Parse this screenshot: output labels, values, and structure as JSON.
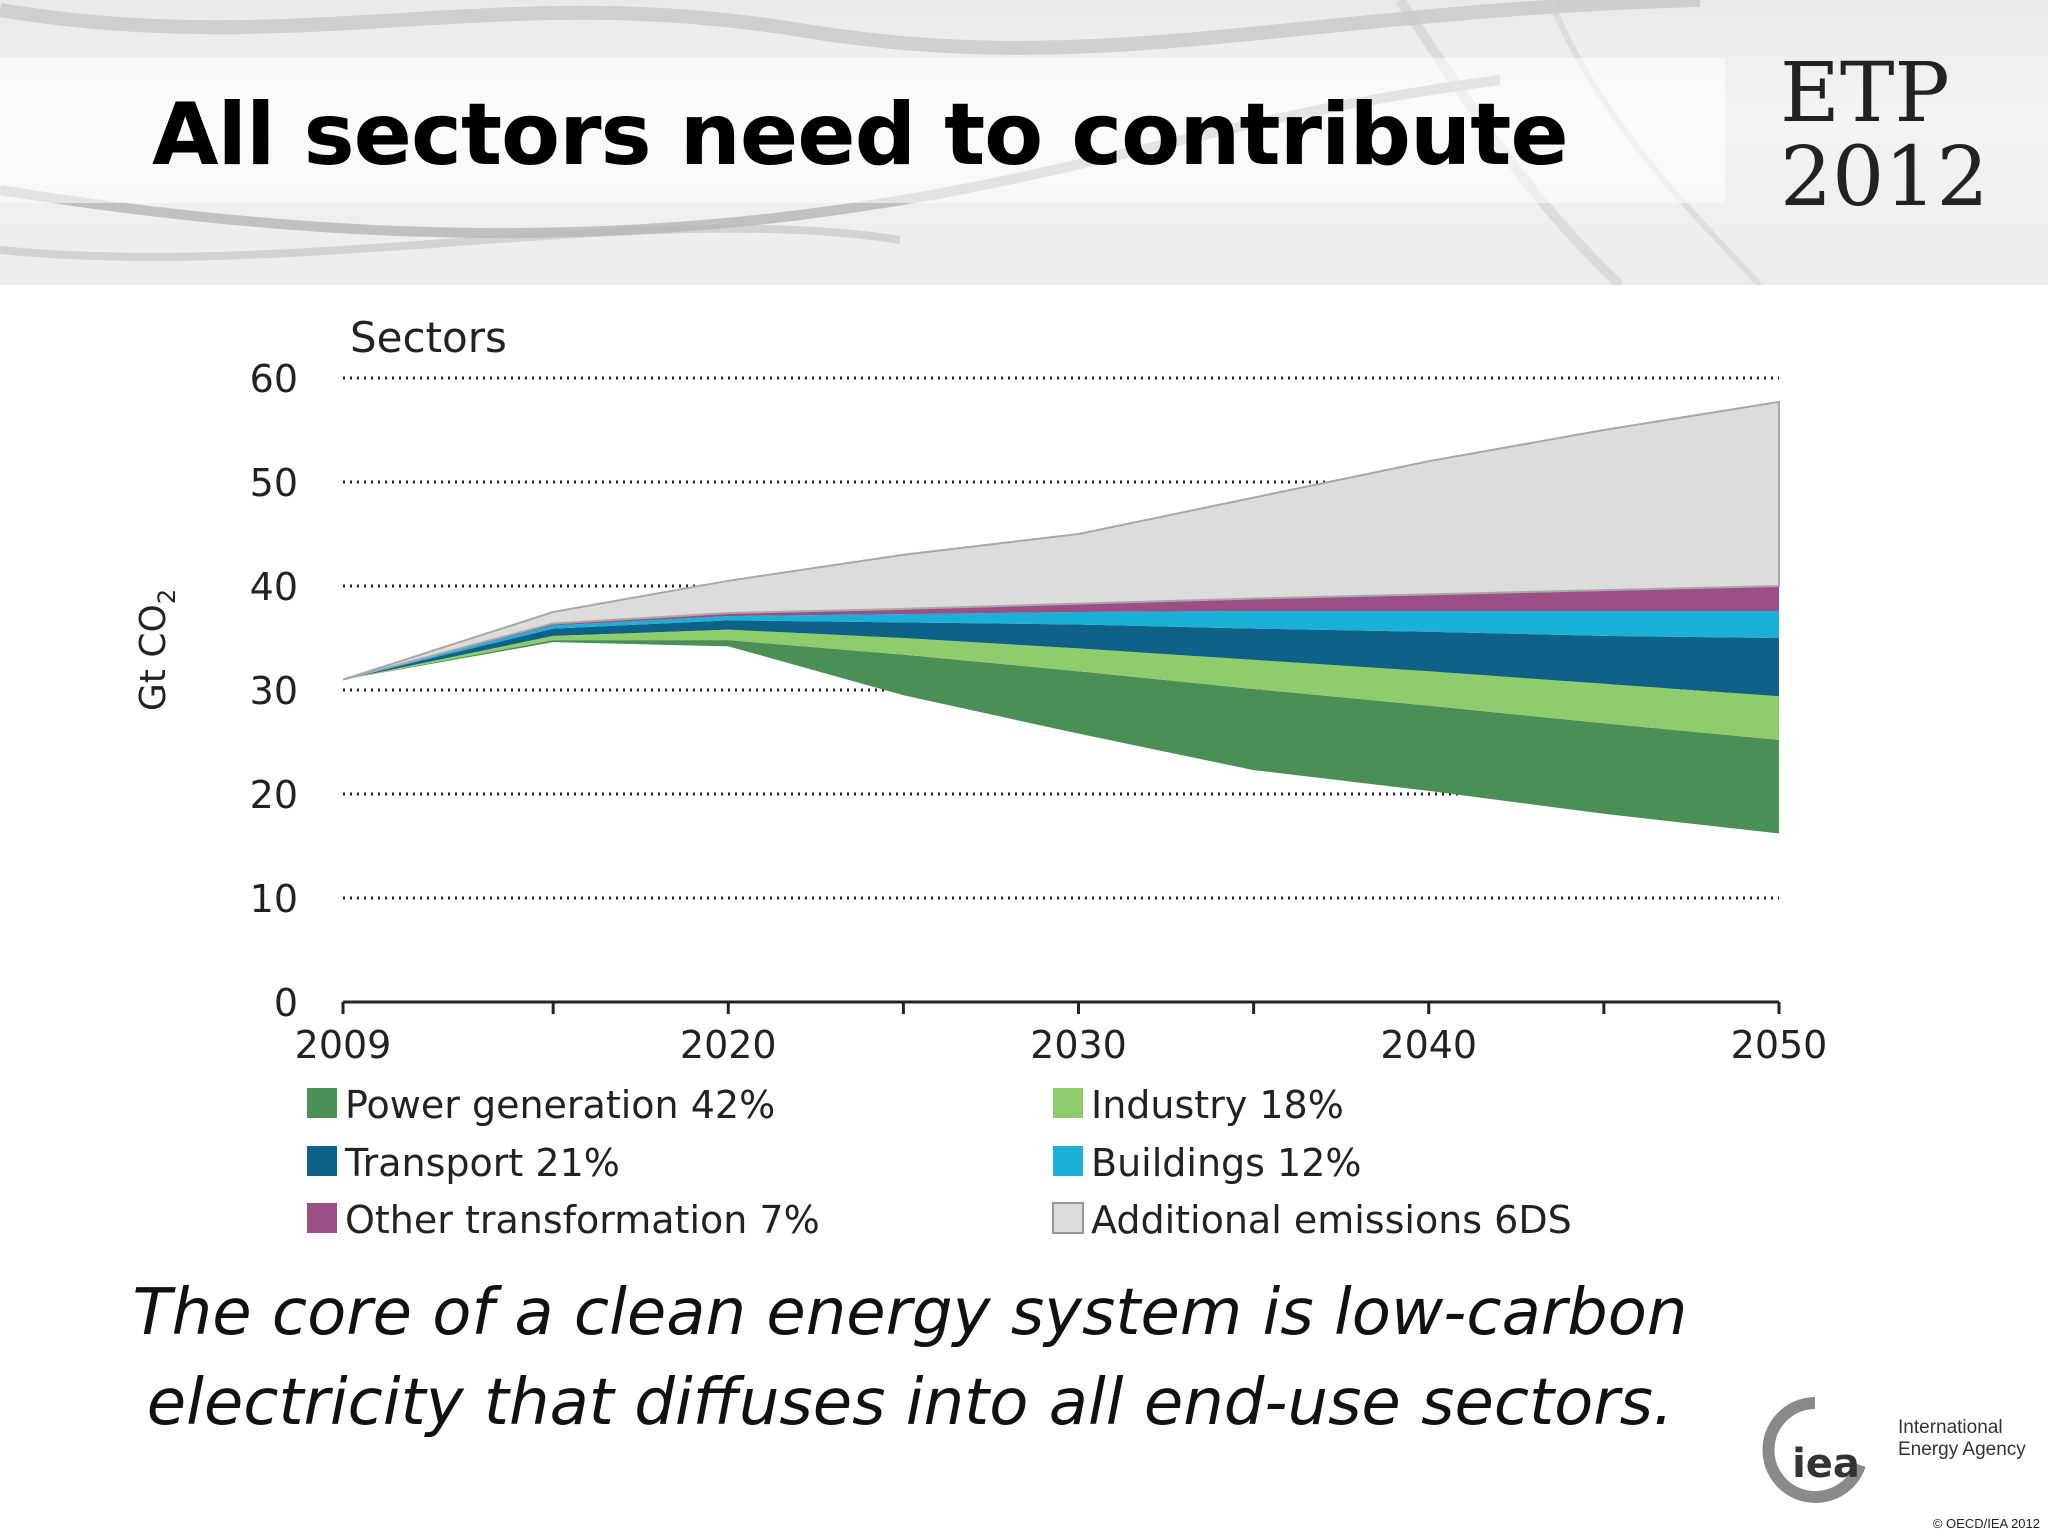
{
  "slide": {
    "title": "All sectors need to contribute",
    "logo_line1": "ETP",
    "logo_line2": "2012",
    "caption_line1": "The core of a clean energy system is low-carbon",
    "caption_line2": "electricity that diffuses into all end-use sectors.",
    "org_name_line1": "International",
    "org_name_line2": "Energy Agency",
    "org_abbrev": "iea",
    "copyright": "© OECD/IEA 2012"
  },
  "chart_data": {
    "type": "area",
    "title": "Sectors",
    "ylabel": "Gt CO",
    "ylabel_sub": "2",
    "ylim": [
      0,
      60
    ],
    "yticks": [
      0,
      10,
      20,
      30,
      40,
      50,
      60
    ],
    "xlim": [
      2009,
      2050
    ],
    "xticks": [
      2009,
      2020,
      2030,
      2040,
      2050
    ],
    "grid": "dotted horizontal",
    "legend_placement": "bottom",
    "x": [
      2009,
      2015,
      2020,
      2025,
      2030,
      2035,
      2040,
      2045,
      2050
    ],
    "bands": [
      {
        "name": "Power generation",
        "share": "42%",
        "color": "#4a8f55",
        "lower": [
          31,
          34.6,
          34.2,
          29.5,
          25.8,
          22.3,
          20.3,
          18.1,
          16.2
        ],
        "upper": [
          31,
          34.8,
          34.8,
          33.4,
          31.8,
          30.1,
          28.5,
          26.8,
          25.2
        ]
      },
      {
        "name": "Industry",
        "share": "18%",
        "color": "#8fcd6c",
        "lower": [
          31,
          34.8,
          34.8,
          33.4,
          31.8,
          30.1,
          28.5,
          26.8,
          25.2
        ],
        "upper": [
          31,
          35.2,
          35.8,
          35.0,
          34.0,
          32.9,
          31.8,
          30.6,
          29.4
        ]
      },
      {
        "name": "Transport",
        "share": "21%",
        "color": "#0e6187",
        "lower": [
          31,
          35.2,
          35.8,
          35.0,
          34.0,
          32.9,
          31.8,
          30.6,
          29.4
        ],
        "upper": [
          31,
          35.9,
          36.7,
          36.5,
          36.3,
          35.9,
          35.6,
          35.2,
          35.0
        ]
      },
      {
        "name": "Buildings",
        "share": "12%",
        "color": "#1ab0d8",
        "lower": [
          31,
          35.9,
          36.7,
          36.5,
          36.3,
          35.9,
          35.6,
          35.2,
          35.0
        ],
        "upper": [
          31,
          36.2,
          37.1,
          37.3,
          37.5,
          37.6,
          37.6,
          37.6,
          37.6
        ]
      },
      {
        "name": "Other transformation",
        "share": "7%",
        "color": "#9b4f85",
        "lower": [
          31,
          36.2,
          37.1,
          37.3,
          37.5,
          37.6,
          37.6,
          37.6,
          37.6
        ],
        "upper": [
          31,
          36.4,
          37.4,
          37.8,
          38.3,
          38.8,
          39.2,
          39.6,
          40.0
        ]
      },
      {
        "name": "Additional emissions 6DS",
        "share": "",
        "color": "#dcdcdc",
        "lower": [
          31,
          36.4,
          37.4,
          37.8,
          38.3,
          38.8,
          39.2,
          39.6,
          40.0
        ],
        "upper": [
          31,
          37.5,
          40.5,
          43.0,
          45.0,
          48.5,
          52.0,
          55.0,
          57.7
        ]
      }
    ],
    "legend": [
      {
        "label": "Power generation  42%",
        "color": "#4a8f55"
      },
      {
        "label": "Industry  18%",
        "color": "#8fcd6c"
      },
      {
        "label": "Transport  21%",
        "color": "#0e6187"
      },
      {
        "label": "Buildings 12%",
        "color": "#1ab0d8"
      },
      {
        "label": "Other transformation  7%",
        "color": "#9b4f85"
      },
      {
        "label": "Additional emissions 6DS",
        "color": "#dcdcdc"
      }
    ]
  }
}
